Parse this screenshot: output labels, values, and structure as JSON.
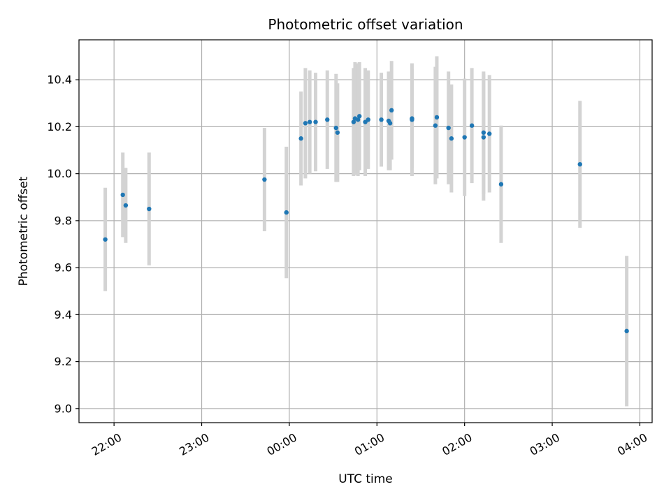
{
  "chart_data": {
    "type": "scatter",
    "title": "Photometric offset variation",
    "xlabel": "UTC time",
    "ylabel": "Photometric offset",
    "x_tick_labels": [
      "22:00",
      "23:00",
      "00:00",
      "01:00",
      "02:00",
      "03:00",
      "04:00"
    ],
    "x_tick_hours": [
      22,
      23,
      24,
      25,
      26,
      27,
      28
    ],
    "xlim_hours": [
      21.6,
      28.14
    ],
    "y_ticks": [
      9.0,
      9.2,
      9.4,
      9.6,
      9.8,
      10.0,
      10.2,
      10.4
    ],
    "y_tick_labels": [
      "9.0",
      "9.2",
      "9.4",
      "9.6",
      "9.8",
      "10.0",
      "10.2",
      "10.4"
    ],
    "ylim": [
      8.94,
      10.57
    ],
    "grid": true,
    "colors": {
      "marker": "#1f77b4",
      "errorbar": "#d3d3d3",
      "grid": "#b0b0b0"
    },
    "x_hour_offset_note_hidden": "",
    "points": [
      {
        "time": "21:54",
        "y": 9.72,
        "err": 0.22
      },
      {
        "time": "22:06",
        "y": 9.91,
        "err": 0.18
      },
      {
        "time": "22:08",
        "y": 9.865,
        "err": 0.16
      },
      {
        "time": "22:24",
        "y": 9.85,
        "err": 0.24
      },
      {
        "time": "23:43",
        "y": 9.975,
        "err": 0.22
      },
      {
        "time": "23:58",
        "y": 9.835,
        "err": 0.28
      },
      {
        "time": "00:08",
        "y": 10.15,
        "err": 0.2
      },
      {
        "time": "00:11",
        "y": 10.215,
        "err": 0.235
      },
      {
        "time": "00:14",
        "y": 10.22,
        "err": 0.22
      },
      {
        "time": "00:18",
        "y": 10.22,
        "err": 0.21
      },
      {
        "time": "00:26",
        "y": 10.23,
        "err": 0.21
      },
      {
        "time": "00:32",
        "y": 10.195,
        "err": 0.23
      },
      {
        "time": "00:33",
        "y": 10.175,
        "err": 0.21
      },
      {
        "time": "00:44",
        "y": 10.22,
        "err": 0.23
      },
      {
        "time": "00:45",
        "y": 10.235,
        "err": 0.24
      },
      {
        "time": "00:47",
        "y": 10.23,
        "err": 0.24
      },
      {
        "time": "00:48",
        "y": 10.245,
        "err": 0.23
      },
      {
        "time": "00:52",
        "y": 10.22,
        "err": 0.23
      },
      {
        "time": "00:54",
        "y": 10.23,
        "err": 0.21
      },
      {
        "time": "01:03",
        "y": 10.23,
        "err": 0.2
      },
      {
        "time": "01:08",
        "y": 10.225,
        "err": 0.21
      },
      {
        "time": "01:09",
        "y": 10.215,
        "err": 0.2
      },
      {
        "time": "01:10",
        "y": 10.27,
        "err": 0.21
      },
      {
        "time": "01:24",
        "y": 10.23,
        "err": 0.24
      },
      {
        "time": "01:24",
        "y": 10.235,
        "err": 0.21
      },
      {
        "time": "01:40",
        "y": 10.205,
        "err": 0.25
      },
      {
        "time": "01:41",
        "y": 10.24,
        "err": 0.26
      },
      {
        "time": "01:49",
        "y": 10.195,
        "err": 0.24
      },
      {
        "time": "01:51",
        "y": 10.15,
        "err": 0.23
      },
      {
        "time": "02:00",
        "y": 10.155,
        "err": 0.25
      },
      {
        "time": "02:05",
        "y": 10.205,
        "err": 0.245
      },
      {
        "time": "02:13",
        "y": 10.155,
        "err": 0.27
      },
      {
        "time": "02:13",
        "y": 10.175,
        "err": 0.26
      },
      {
        "time": "02:17",
        "y": 10.17,
        "err": 0.25
      },
      {
        "time": "02:25",
        "y": 9.955,
        "err": 0.25
      },
      {
        "time": "03:19",
        "y": 10.04,
        "err": 0.27
      },
      {
        "time": "03:51",
        "y": 9.33,
        "err": 0.32
      }
    ]
  }
}
